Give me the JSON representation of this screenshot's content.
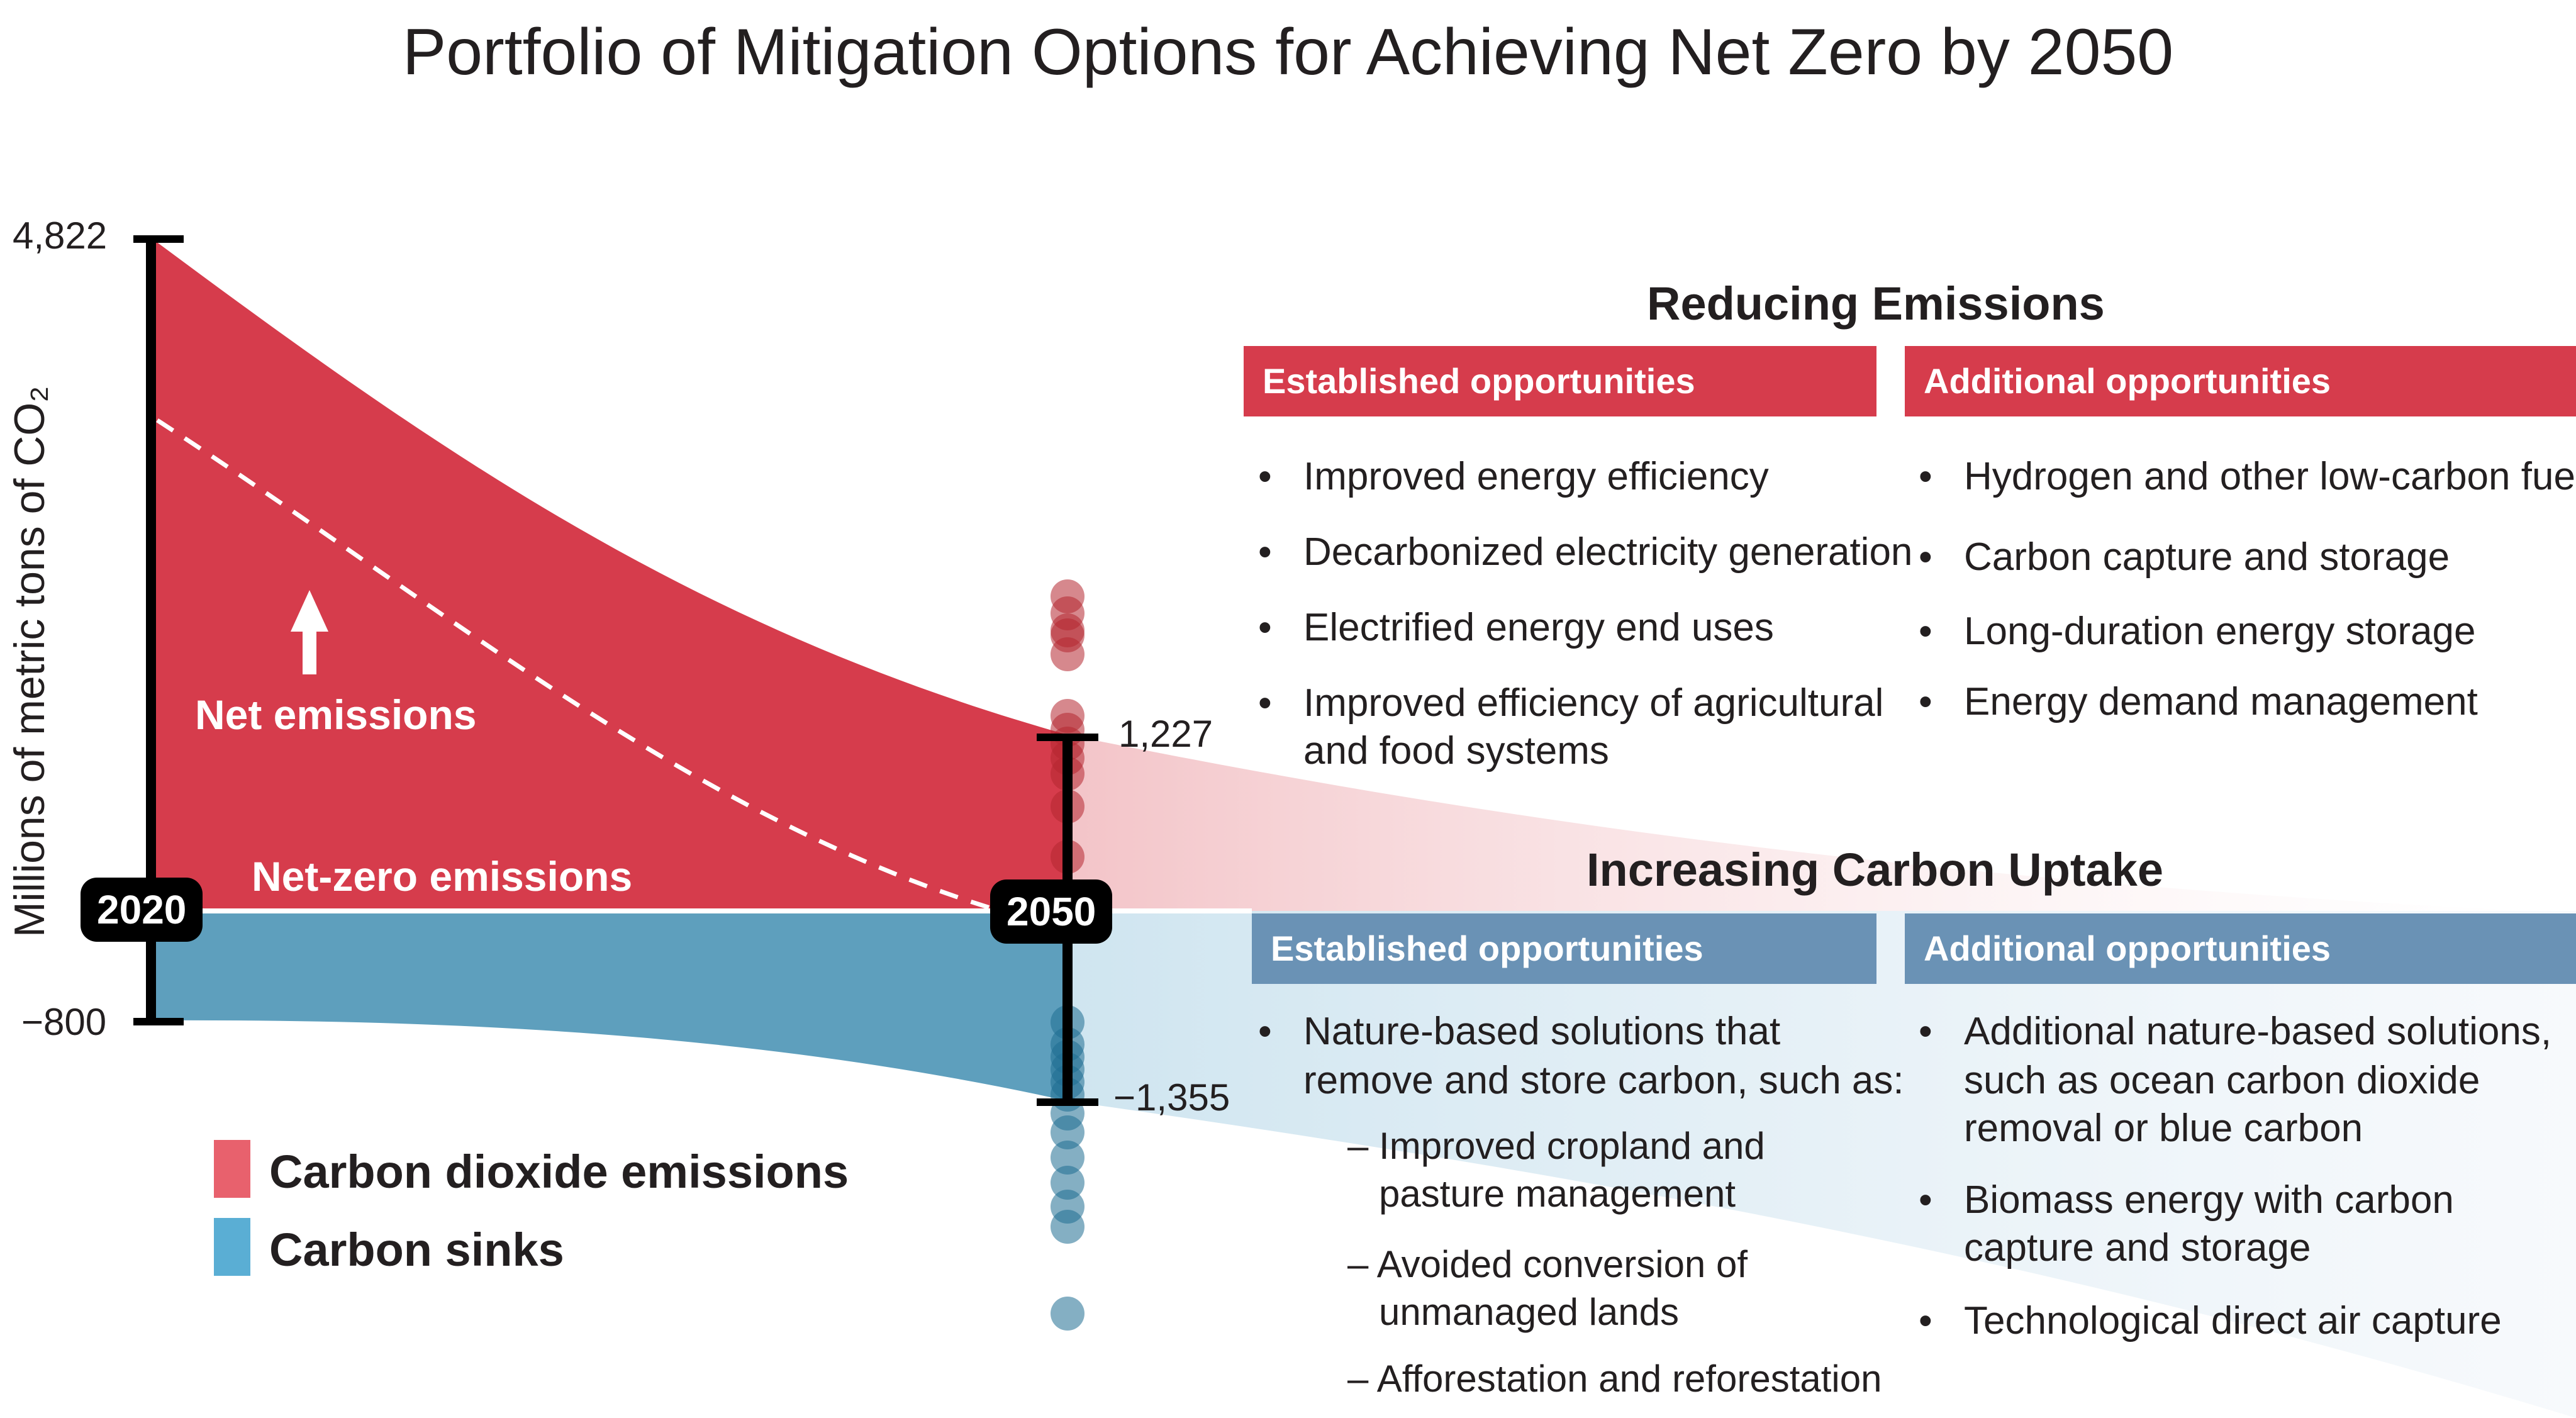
{
  "title": "Portfolio of Mitigation Options for Achieving Net Zero by 2050",
  "y_axis_label": "Millions of metric tons of CO₂",
  "ticks": {
    "top": "4,822",
    "bottom": "−800",
    "upper_2050": "1,227",
    "lower_2050": "−1,355"
  },
  "years": {
    "start": "2020",
    "end": "2050"
  },
  "labels": {
    "net_emissions": "Net emissions",
    "net_zero": "Net-zero emissions"
  },
  "reducing": {
    "title": "Reducing Emissions",
    "established": {
      "header": "Established opportunities",
      "items": [
        "Improved energy efficiency",
        "Decarbonized electricity generation",
        "Electrified energy end uses",
        "Improved efficiency of agricultural",
        "and food systems"
      ]
    },
    "additional": {
      "header": "Additional opportunities",
      "items": [
        "Hydrogen and other low-carbon fuels",
        "Carbon capture and storage",
        "Long-duration energy storage",
        "Energy demand management"
      ]
    }
  },
  "uptake": {
    "title": "Increasing Carbon Uptake",
    "established": {
      "header": "Established opportunities",
      "lead": [
        "Nature-based solutions that",
        "remove and store carbon, such as:"
      ],
      "subitems": [
        "Improved cropland and",
        "pasture management",
        "Avoided conversion of",
        "unmanaged lands",
        "Afforestation and reforestation"
      ]
    },
    "additional": {
      "header": "Additional opportunities",
      "items": [
        "Additional nature-based solutions,",
        "such as ocean carbon dioxide",
        "removal or blue carbon",
        "Biomass energy with carbon",
        "capture and storage",
        "Technological direct air capture"
      ]
    }
  },
  "legend": {
    "emissions": "Carbon dioxide emissions",
    "sinks": "Carbon sinks"
  },
  "colors": {
    "emissions": "#d63c4c",
    "sinks": "#5e9fbd",
    "emissions_legend": "#e8616d",
    "sinks_legend": "#5aaed4",
    "header_blue": "#6a92b5"
  },
  "chart_data": {
    "type": "area",
    "title": "Portfolio of Mitigation Options for Achieving Net Zero by 2050",
    "ylabel": "Millions of metric tons of CO₂",
    "x": [
      2020,
      2050
    ],
    "series": [
      {
        "name": "Carbon dioxide emissions",
        "values": [
          4822,
          1227
        ]
      },
      {
        "name": "Carbon sinks",
        "values": [
          -800,
          -1355
        ]
      },
      {
        "name": "Net emissions",
        "values": [
          3500,
          0
        ]
      }
    ]
  }
}
